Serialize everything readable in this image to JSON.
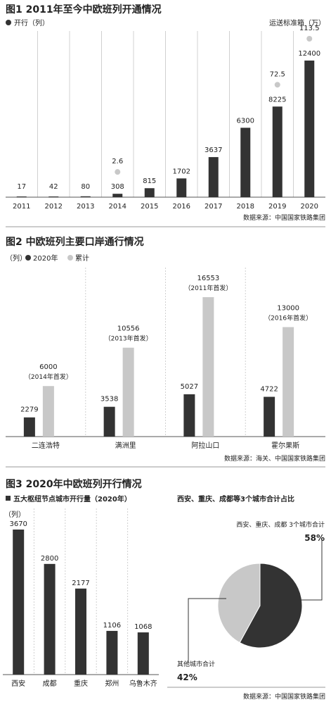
{
  "colors": {
    "dark": "#333333",
    "light": "#c8c8c8",
    "grid": "#d0d0d0",
    "text": "#222222"
  },
  "chart_data": [
    {
      "type": "bar",
      "title": "图1 2011年至今中欧班列开通情况",
      "legend": [
        "开行（列）",
        "运送标准箱（万）"
      ],
      "categories": [
        "2011",
        "2012",
        "2013",
        "2014",
        "2015",
        "2016",
        "2017",
        "2018",
        "2019",
        "2020"
      ],
      "series": [
        {
          "name": "开行（列）",
          "values": [
            17,
            42,
            80,
            308,
            815,
            1702,
            3637,
            6300,
            8225,
            12400
          ]
        },
        {
          "name": "运送标准箱（万）",
          "values": [
            null,
            null,
            null,
            2.6,
            null,
            null,
            null,
            null,
            72.5,
            113.5
          ]
        }
      ],
      "source": "数据来源：中国国家铁路集团"
    },
    {
      "type": "bar",
      "title": "图2 中欧班列主要口岸通行情况",
      "unit": "（列）",
      "legend": [
        "2020年",
        "累计"
      ],
      "categories": [
        "二连浩特",
        "满洲里",
        "阿拉山口",
        "霍尔果斯"
      ],
      "series": [
        {
          "name": "2020年",
          "values": [
            2279,
            3538,
            5027,
            4722
          ]
        },
        {
          "name": "累计",
          "values": [
            6000,
            10556,
            16553,
            13000
          ]
        }
      ],
      "notes": [
        "（2014年首发）",
        "（2013年首发）",
        "（2011年首发）",
        "（2016年首发）"
      ],
      "source": "数据来源：海关、中国国家铁路集团"
    },
    {
      "type": "bar",
      "title": "图3 2020年中欧班列开行情况",
      "subtitle": "五大枢纽节点城市开行量（2020年）",
      "unit": "（列）",
      "categories": [
        "西安",
        "成都",
        "重庆",
        "郑州",
        "乌鲁木齐"
      ],
      "values": [
        3670,
        2800,
        2177,
        1106,
        1068
      ]
    },
    {
      "type": "pie",
      "title": "西安、重庆、成都等3个城市合计占比",
      "labels": [
        "西安、重庆、成都 3个城市合计",
        "其他城市合计"
      ],
      "values": [
        58,
        42
      ],
      "value_labels": [
        "58%",
        "42%"
      ],
      "source": "数据来源：中国国家铁路集团"
    }
  ]
}
